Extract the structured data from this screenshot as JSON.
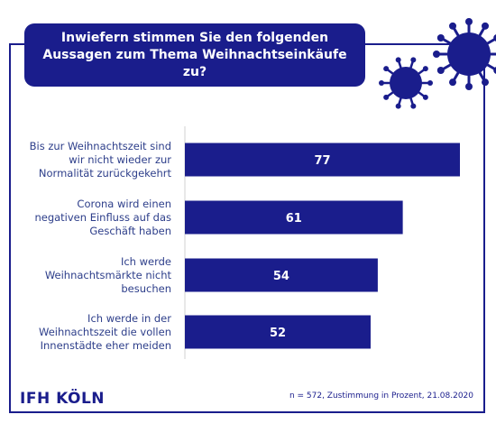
{
  "title": "Inwiefern stimmen Sie den folgenden Aussagen zum Thema Weihnachtseinkäufe zu?",
  "logo": "IFH KÖLN",
  "footnote": "n = 572, Zustimmung in Prozent, 21.08.2020",
  "colors": {
    "primary": "#1a1d8c",
    "bar": "#1a1d8c",
    "bar_label": "#ffffff",
    "category_text": "#2d3e8a",
    "background": "#ffffff"
  },
  "chart_data": {
    "type": "bar",
    "orientation": "horizontal",
    "categories": [
      [
        "Bis zur Weihnachtszeit sind",
        "wir nicht wieder zur",
        "Normalität zurückgekehrt"
      ],
      [
        "Corona wird einen",
        "negativen Einfluss auf das",
        "Geschäft haben"
      ],
      [
        "Ich werde",
        "Weihnachtsmärkte nicht",
        "besuchen"
      ],
      [
        "Ich werde in der",
        "Weihnachtszeit die vollen",
        "Innenstädte eher meiden"
      ]
    ],
    "values": [
      77,
      61,
      54,
      52
    ],
    "value_labels": [
      "77",
      "61",
      "54",
      "52"
    ],
    "xlim": [
      0,
      77
    ],
    "grid": false,
    "legend": false
  }
}
